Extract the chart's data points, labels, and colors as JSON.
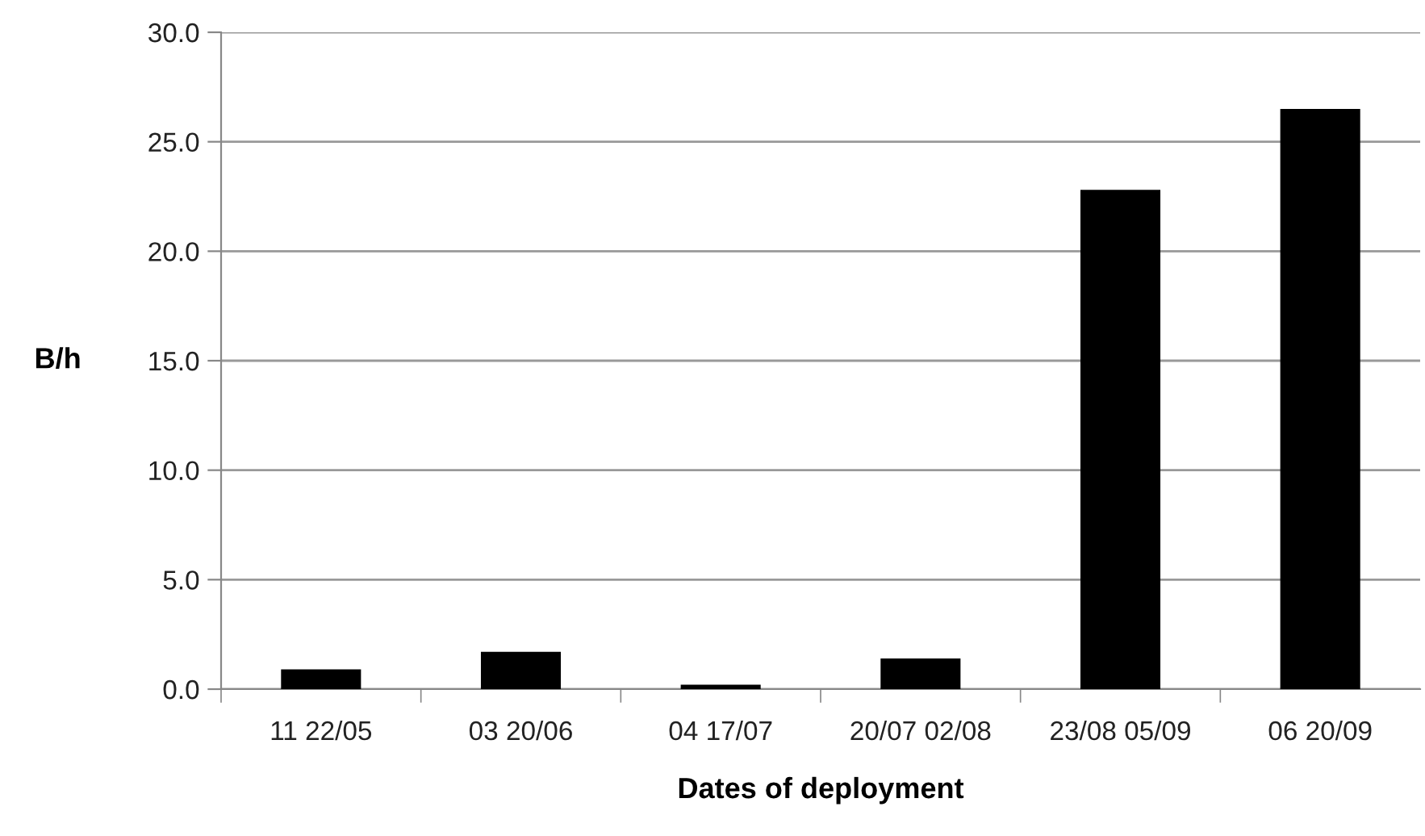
{
  "chart_data": {
    "type": "bar",
    "xlabel": "Dates of deployment",
    "ylabel": "B/h",
    "categories": [
      "11 22/05",
      "03 20/06",
      "04 17/07",
      "20/07 02/08",
      "23/08 05/09",
      "06 20/09"
    ],
    "values": [
      0.9,
      1.7,
      0.2,
      1.4,
      22.8,
      26.5
    ],
    "color": "#000000",
    "ylim": [
      0,
      30
    ],
    "yticks": [
      {
        "value": 0,
        "label": "0.0"
      },
      {
        "value": 5,
        "label": "5.0"
      },
      {
        "value": 10,
        "label": "10.0"
      },
      {
        "value": 15,
        "label": "15.0"
      },
      {
        "value": 20,
        "label": "20.0"
      },
      {
        "value": 25,
        "label": "25.0"
      },
      {
        "value": 30,
        "label": "30.0"
      }
    ],
    "grid": "y",
    "legend": false
  }
}
